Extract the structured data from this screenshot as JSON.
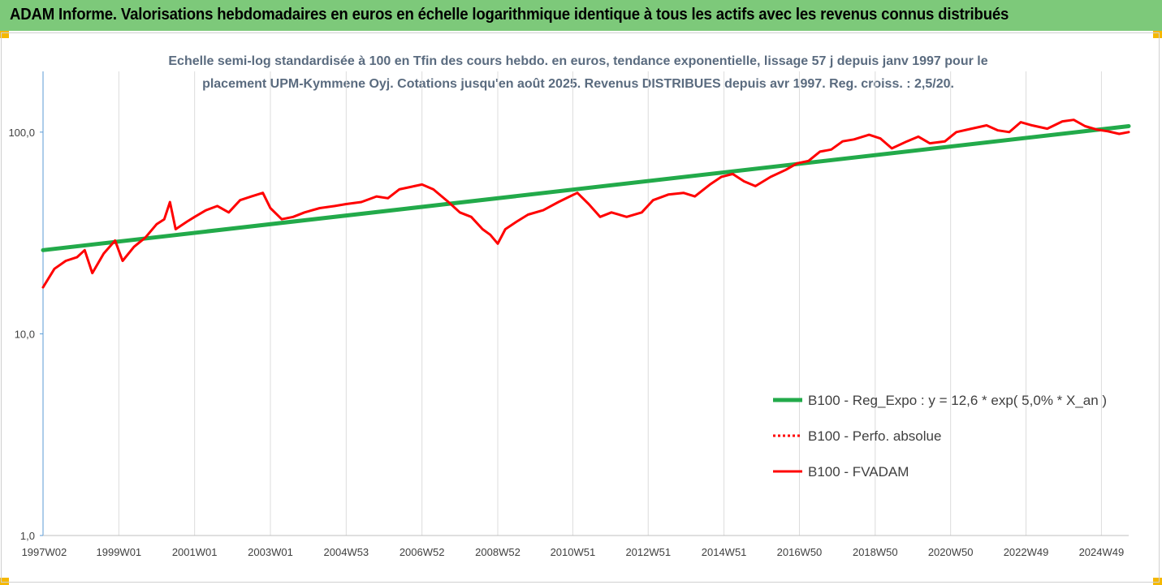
{
  "header": {
    "title": "ADAM Informe. Valorisations hebdomadaires en euros en échelle logarithmique identique à tous les actifs avec les revenus connus distribués",
    "background_color": "#7dc97a",
    "corner_color": "#f5b800"
  },
  "chart_data": {
    "type": "line",
    "title_lines": [
      "Echelle semi-log standardisée à 100 en Tfin des cours hebdo. en euros, tendance exponentielle, lissage 57 j depuis janv 1997 pour le",
      "placement UPM-Kymmene Oyj. Cotations jusqu'en août 2025. Revenus DISTRIBUES depuis avr 1997.  Reg. croiss. : 2,5/20."
    ],
    "y_scale": "log",
    "ylim": [
      1,
      200
    ],
    "y_ticks": [
      {
        "value": 1,
        "label": "1,0"
      },
      {
        "value": 10,
        "label": "10,0"
      },
      {
        "value": 100,
        "label": "100,0"
      }
    ],
    "x_range": [
      1997.0,
      2025.65
    ],
    "x_ticks": [
      {
        "value": 1997.03,
        "label": "1997W02"
      },
      {
        "value": 1999.0,
        "label": "1999W01"
      },
      {
        "value": 2001.0,
        "label": "2001W01"
      },
      {
        "value": 2003.0,
        "label": "2003W01"
      },
      {
        "value": 2005.0,
        "label": "2004W53"
      },
      {
        "value": 2007.0,
        "label": "2006W52"
      },
      {
        "value": 2009.0,
        "label": "2008W52"
      },
      {
        "value": 2010.98,
        "label": "2010W51"
      },
      {
        "value": 2012.97,
        "label": "2012W51"
      },
      {
        "value": 2014.97,
        "label": "2014W51"
      },
      {
        "value": 2016.96,
        "label": "2016W50"
      },
      {
        "value": 2018.96,
        "label": "2018W50"
      },
      {
        "value": 2020.95,
        "label": "2020W50"
      },
      {
        "value": 2022.94,
        "label": "2022W49"
      },
      {
        "value": 2024.93,
        "label": "2024W49"
      }
    ],
    "grid": "vertical",
    "legend_position": "bottom-right",
    "series": [
      {
        "name": "B100 - Reg_Expo : y = 12,6 * exp( 5,0% *  X_an )",
        "color": "#22aa4a",
        "style": "solid",
        "x": [
          1997.0,
          2025.65
        ],
        "y": [
          26,
          107
        ]
      },
      {
        "name": "B100 - Perfo. absolue",
        "color": "#ff0000",
        "style": "dotted",
        "x": [],
        "y": []
      },
      {
        "name": "B100 - FVADAM",
        "color": "#ff0000",
        "style": "solid",
        "x": [
          1997.0,
          1997.3,
          1997.6,
          1997.9,
          1998.1,
          1998.3,
          1998.6,
          1998.9,
          1999.1,
          1999.4,
          1999.7,
          2000.0,
          2000.2,
          2000.35,
          2000.5,
          2000.8,
          2001.0,
          2001.3,
          2001.6,
          2001.9,
          2002.2,
          2002.5,
          2002.8,
          2003.0,
          2003.3,
          2003.6,
          2003.9,
          2004.3,
          2004.7,
          2005.0,
          2005.4,
          2005.8,
          2006.1,
          2006.4,
          2006.8,
          2007.0,
          2007.3,
          2007.7,
          2008.0,
          2008.3,
          2008.6,
          2008.8,
          2009.0,
          2009.2,
          2009.5,
          2009.8,
          2010.2,
          2010.6,
          2010.9,
          2011.1,
          2011.4,
          2011.7,
          2012.0,
          2012.4,
          2012.8,
          2013.1,
          2013.5,
          2013.9,
          2014.2,
          2014.6,
          2014.9,
          2015.2,
          2015.5,
          2015.8,
          2016.2,
          2016.6,
          2016.9,
          2017.2,
          2017.5,
          2017.8,
          2018.1,
          2018.4,
          2018.8,
          2019.1,
          2019.4,
          2019.8,
          2020.1,
          2020.4,
          2020.8,
          2021.1,
          2021.5,
          2021.9,
          2022.2,
          2022.5,
          2022.8,
          2023.1,
          2023.5,
          2023.9,
          2024.2,
          2024.5,
          2024.8,
          2025.1,
          2025.4,
          2025.65
        ],
        "y": [
          17,
          21,
          23,
          24,
          26,
          20,
          25,
          29,
          23,
          27,
          30,
          35,
          37,
          45,
          33,
          36,
          38,
          41,
          43,
          40,
          46,
          48,
          50,
          42,
          37,
          38,
          40,
          42,
          43,
          44,
          45,
          48,
          47,
          52,
          54,
          55,
          52,
          45,
          40,
          38,
          33,
          31,
          28,
          33,
          36,
          39,
          41,
          45,
          48,
          50,
          44,
          38,
          40,
          38,
          40,
          46,
          49,
          50,
          48,
          55,
          60,
          62,
          57,
          54,
          60,
          65,
          70,
          72,
          80,
          82,
          90,
          92,
          97,
          93,
          83,
          90,
          95,
          88,
          90,
          100,
          104,
          108,
          102,
          100,
          112,
          108,
          104,
          113,
          115,
          107,
          103,
          101,
          98,
          100
        ]
      }
    ]
  }
}
